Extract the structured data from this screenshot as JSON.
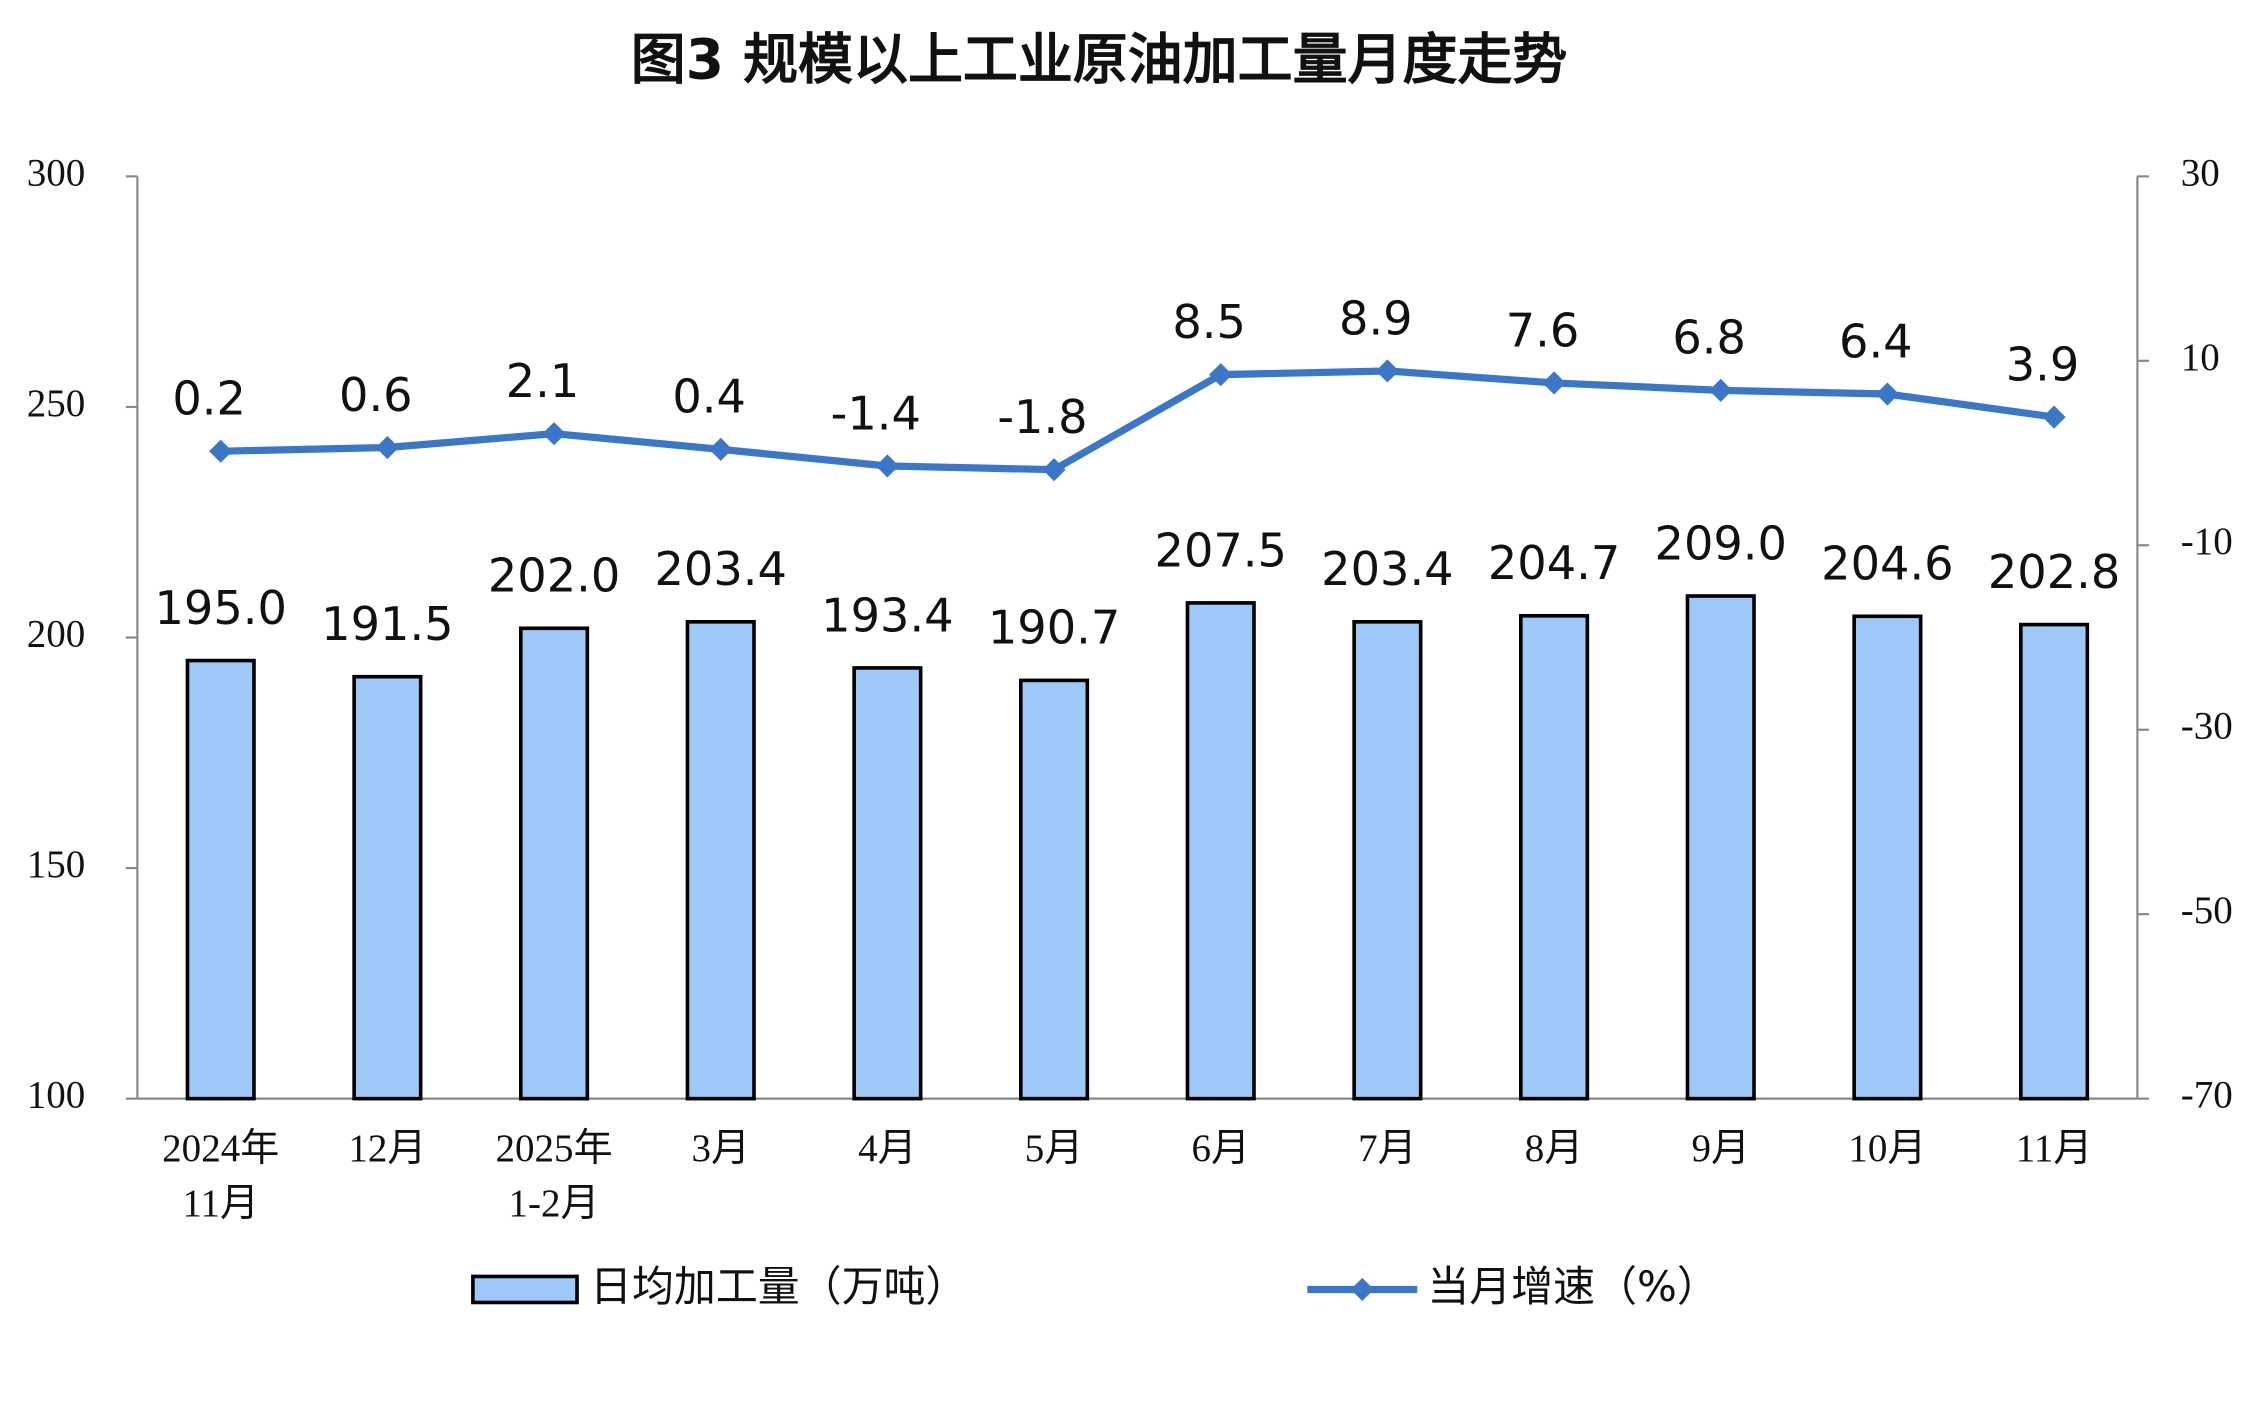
{
  "chart_data": {
    "type": "bar_line",
    "title": "图3 规模以上工业原油加工量月度走势",
    "categories": [
      [
        "2024年",
        "11月"
      ],
      [
        "12月"
      ],
      [
        "2025年",
        "1-2月"
      ],
      [
        "3月"
      ],
      [
        "4月"
      ],
      [
        "5月"
      ],
      [
        "6月"
      ],
      [
        "7月"
      ],
      [
        "8月"
      ],
      [
        "9月"
      ],
      [
        "10月"
      ],
      [
        "11月"
      ]
    ],
    "series": [
      {
        "name": "日均加工量（万吨）",
        "type": "bar",
        "color": "#9dc8f8",
        "values": [
          195.0,
          191.5,
          202.0,
          203.4,
          193.4,
          190.7,
          207.5,
          203.4,
          204.7,
          209.0,
          204.6,
          202.8
        ],
        "value_labels": [
          "195.0",
          "191.5",
          "202.0",
          "203.4",
          "193.4",
          "190.7",
          "207.5",
          "203.4",
          "204.7",
          "209.0",
          "204.6",
          "202.8"
        ]
      },
      {
        "name": "当月增速（%）",
        "type": "line",
        "axis": "y2",
        "color": "#3b77c6",
        "values": [
          0.2,
          0.6,
          2.1,
          0.4,
          -1.4,
          -1.8,
          8.5,
          8.9,
          7.6,
          6.8,
          6.4,
          3.9
        ]
      }
    ],
    "ylim": [
      100,
      300
    ],
    "yticks": [
      100,
      150,
      200,
      250,
      300
    ],
    "y2lim": [
      -70,
      30
    ],
    "y2ticks": [
      -70,
      -50,
      -30,
      -10,
      10,
      30
    ],
    "legend": "bottom"
  }
}
